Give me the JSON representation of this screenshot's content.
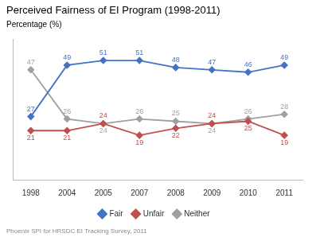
{
  "chart_data": {
    "type": "line",
    "title": "Perceived Fairness of EI Program (1998-2011)",
    "ylabel": "Percentage (%)",
    "source": "Phoenix SPI for HRSDC EI Tracking Survey, 2011",
    "categories": [
      "1998",
      "2004",
      "2005",
      "2007",
      "2008",
      "2009",
      "2010",
      "2011"
    ],
    "series": [
      {
        "name": "Fair",
        "color": "#4472C4",
        "marker": "diamond",
        "values": [
          27,
          49,
          51,
          51,
          48,
          47,
          46,
          49
        ]
      },
      {
        "name": "Unfair",
        "color": "#C0504D",
        "marker": "diamond",
        "values": [
          21,
          21,
          24,
          19,
          22,
          24,
          25,
          19
        ]
      },
      {
        "name": "Neither",
        "color": "#9FA0A0",
        "marker": "diamond",
        "values": [
          47,
          26,
          24,
          26,
          25,
          24,
          26,
          28
        ]
      }
    ],
    "ylim": [
      0,
      60
    ],
    "grid": false,
    "legend": "bottom",
    "data_labels": true,
    "tick_labels": "x"
  }
}
